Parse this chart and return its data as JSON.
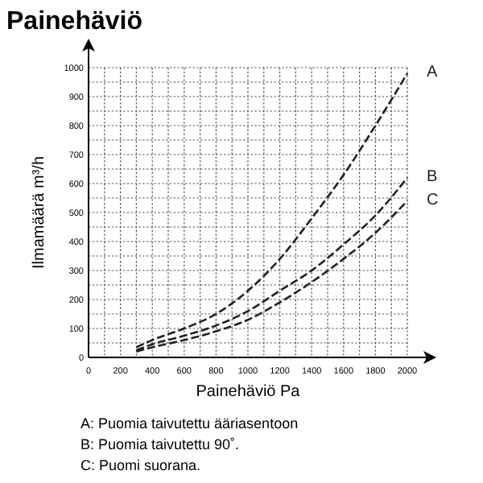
{
  "chart_data": {
    "type": "line",
    "title": "Painehäviö",
    "xlabel": "Painehäviö Pa",
    "ylabel": "Ilmamäärä m³/h",
    "x": [
      300,
      400,
      600,
      800,
      1000,
      1200,
      1400,
      1600,
      1800,
      2000
    ],
    "series": [
      {
        "name": "A",
        "color": "#222222",
        "values": [
          35,
          60,
          100,
          150,
          230,
          340,
          480,
          630,
          800,
          980
        ]
      },
      {
        "name": "B",
        "color": "#222222",
        "values": [
          25,
          45,
          75,
          110,
          160,
          230,
          300,
          390,
          490,
          620
        ]
      },
      {
        "name": "C",
        "color": "#222222",
        "values": [
          20,
          35,
          60,
          90,
          130,
          190,
          260,
          340,
          430,
          540
        ]
      }
    ],
    "xlim": [
      0,
      2000
    ],
    "xticks": [
      0,
      200,
      400,
      600,
      800,
      1000,
      1200,
      1400,
      1600,
      1800,
      2000
    ],
    "ylim": [
      0,
      1000
    ],
    "yticks": [
      0,
      100,
      200,
      300,
      400,
      500,
      600,
      700,
      800,
      900,
      1000
    ],
    "grid": true,
    "line_style": "dashed",
    "marker": "none",
    "annotations": [
      "A: Puomia taivutettu ääriasentoon",
      "B: Puomia taivutettu 90˚.",
      "C: Puomi suorana."
    ]
  }
}
